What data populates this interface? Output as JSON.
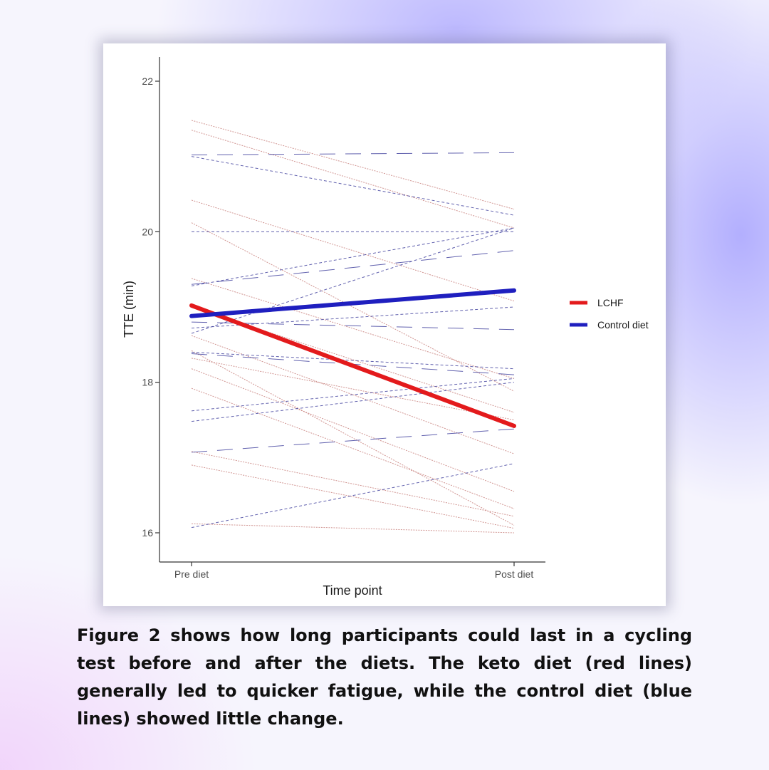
{
  "chart_data": {
    "type": "line",
    "title": "",
    "xlabel": "Time point",
    "ylabel": "TTE (min)",
    "categories": [
      "Pre diet",
      "Post diet"
    ],
    "ylim": [
      15.6,
      22.4
    ],
    "yticks": [
      16,
      18,
      20,
      22
    ],
    "grid": false,
    "legend": {
      "placement": "right",
      "entries": [
        {
          "label": "LCHF",
          "color": "#e31a1c"
        },
        {
          "label": "Control diet",
          "color": "#1f1fbf"
        }
      ]
    },
    "series": [
      {
        "name": "LCHF",
        "role": "mean",
        "color": "#e31a1c",
        "values": [
          19.02,
          17.42
        ]
      },
      {
        "name": "Control diet",
        "role": "mean",
        "color": "#1f1fbf",
        "values": [
          18.88,
          19.22
        ]
      }
    ],
    "individual_lines": {
      "lchf_color": "#c9837f",
      "control_color": "#3a3a9a",
      "lchf": [
        [
          21.48,
          20.3
        ],
        [
          21.35,
          20.05
        ],
        [
          20.42,
          19.08
        ],
        [
          20.12,
          17.88
        ],
        [
          19.38,
          18.05
        ],
        [
          18.62,
          17.05
        ],
        [
          18.42,
          16.1
        ],
        [
          18.32,
          17.5
        ],
        [
          18.18,
          16.55
        ],
        [
          17.92,
          16.32
        ],
        [
          17.08,
          16.22
        ],
        [
          16.9,
          16.06
        ],
        [
          16.12,
          16.0
        ],
        [
          19.0,
          17.6
        ]
      ],
      "control": [
        [
          21.02,
          21.05
        ],
        [
          21.0,
          20.22
        ],
        [
          20.0,
          20.0
        ],
        [
          19.3,
          19.75
        ],
        [
          19.28,
          20.05
        ],
        [
          18.65,
          20.05
        ],
        [
          18.8,
          18.7
        ],
        [
          18.72,
          19.0
        ],
        [
          18.4,
          18.18
        ],
        [
          18.38,
          18.1
        ],
        [
          17.62,
          18.05
        ],
        [
          17.48,
          18.0
        ],
        [
          17.07,
          17.38
        ],
        [
          16.07,
          16.92
        ]
      ]
    }
  },
  "caption": "Figure 2 shows how long participants could last in a cycling test before and after the diets. The keto diet (red lines) generally led to quicker fatigue, while the control diet (blue lines) showed little change."
}
